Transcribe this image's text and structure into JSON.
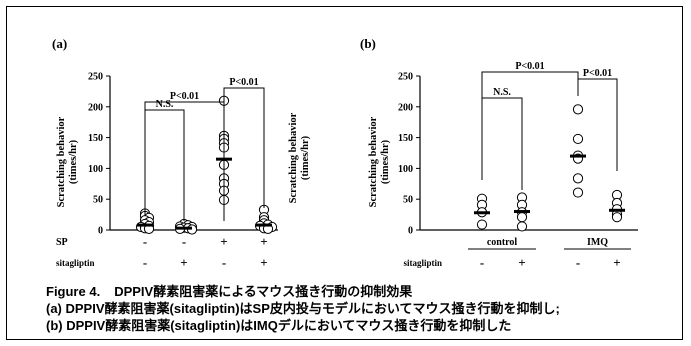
{
  "caption": {
    "figure": "Figure 4.",
    "title": "DPPIV酵素阻害薬によるマウス掻き行動の抑制効果",
    "line_a": "(a) DPPIV酵素阻害薬(sitagliptin)はSP皮内投与モデルにおいてマウス掻き行動を抑制し;",
    "line_b": "(b) DPPIV酵素阻害薬(sitagliptin)はIMQデルにおいてマウス掻き行動を抑制した"
  },
  "chart_data": [
    {
      "type": "scatter",
      "panel_label": "(a)",
      "ylabel": "Scratching behavior (times/hr)",
      "ylim": [
        0,
        250
      ],
      "yticks": [
        0,
        50,
        100,
        150,
        200,
        250
      ],
      "groups": [
        {
          "values": [
            26,
            22,
            19,
            15,
            12,
            9,
            6,
            4,
            2,
            1
          ],
          "mean": 8
        },
        {
          "values": [
            9,
            7,
            5,
            4,
            3,
            2,
            1,
            0
          ],
          "mean": 3
        },
        {
          "values": [
            209,
            152,
            147,
            140,
            133,
            105,
            83,
            74,
            63,
            48
          ],
          "mean": 115
        },
        {
          "values": [
            32,
            20,
            15,
            10,
            8,
            6,
            4,
            2,
            1
          ],
          "mean": 8
        }
      ],
      "rows": [
        {
          "label": "SP",
          "signs": [
            "-",
            "-",
            "+",
            "+"
          ]
        },
        {
          "label": "sitagliptin",
          "signs": [
            "-",
            "+",
            "-",
            "+"
          ]
        }
      ],
      "annotations": [
        {
          "text": "P<0.01",
          "from": 0,
          "to": 2
        },
        {
          "text": "N.S.",
          "from": 0,
          "to": 1
        },
        {
          "text": "P<0.01",
          "from": 2,
          "to": 3
        }
      ],
      "secondary_ylabel": "Scratching behavior (times/hr)"
    },
    {
      "type": "scatter",
      "panel_label": "(b)",
      "ylabel": "Scratching behavior (times/hr)",
      "ylim": [
        0,
        250
      ],
      "yticks": [
        0,
        50,
        100,
        150,
        200,
        250
      ],
      "groups": [
        {
          "values": [
            50,
            40,
            28,
            8
          ],
          "mean": 28
        },
        {
          "values": [
            52,
            40,
            28,
            20,
            5
          ],
          "mean": 30
        },
        {
          "values": [
            195,
            147,
            120,
            115,
            83,
            60
          ],
          "mean": 120
        },
        {
          "values": [
            56,
            43,
            33,
            25,
            20
          ],
          "mean": 32
        }
      ],
      "categories": [
        {
          "label": "control",
          "span": [
            0,
            1
          ]
        },
        {
          "label": "IMQ",
          "span": [
            2,
            3
          ]
        }
      ],
      "rows": [
        {
          "label": "sitagliptin",
          "signs": [
            "-",
            "+",
            "-",
            "+"
          ]
        }
      ],
      "annotations": [
        {
          "text": "P<0.01",
          "from": 0,
          "to": 2
        },
        {
          "text": "N.S.",
          "from": 0,
          "to": 1
        },
        {
          "text": "P<0.01",
          "from": 2,
          "to": 3
        }
      ]
    }
  ]
}
